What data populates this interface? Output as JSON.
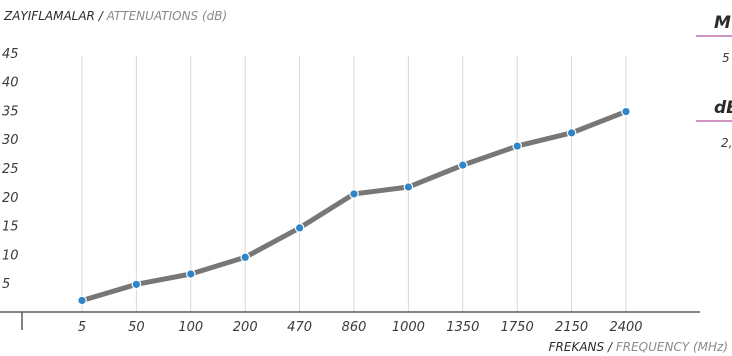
{
  "chart_data": {
    "type": "line",
    "title_primary": "ZAYIFLAMALAR",
    "title_secondary": "ATTENUATIONS  (dB)",
    "xlabel_primary": "FREKANS",
    "xlabel_secondary": "FREQUENCY (MHz)",
    "categories": [
      "5",
      "50",
      "100",
      "200",
      "470",
      "860",
      "1000",
      "1350",
      "1750",
      "2150",
      "2400"
    ],
    "values": [
      2,
      4.8,
      6.6,
      9.5,
      14.6,
      20.5,
      21.7,
      25.5,
      28.8,
      31.1,
      34.8
    ],
    "yticks": [
      "5",
      "10",
      "15",
      "20",
      "25",
      "30",
      "35",
      "40",
      "45"
    ],
    "ylim": [
      0,
      45
    ],
    "grid": "vertical",
    "colors": {
      "line": "#777777",
      "marker": "#2e86c9",
      "grid": "#d9d9d9",
      "axis": "#5a5a5a",
      "accent": "#b3559b"
    }
  },
  "side_panel": {
    "head1": "M",
    "val1": "5",
    "head2": "dB",
    "val2": "2,"
  }
}
